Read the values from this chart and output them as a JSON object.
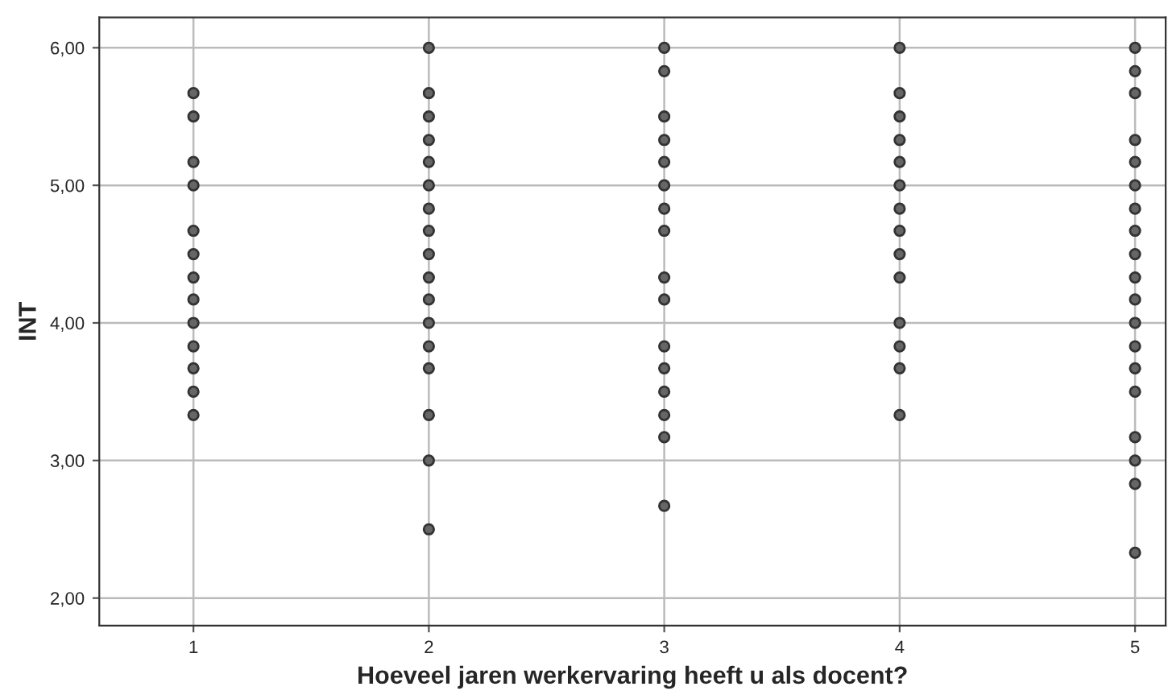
{
  "chart_data": {
    "type": "scatter",
    "xlabel": "Hoeveel jaren werkervaring heeft u als docent?",
    "ylabel": "INT",
    "xlim": [
      0.6,
      5.13
    ],
    "ylim": [
      1.8,
      6.22
    ],
    "xticks": [
      1,
      2,
      3,
      4,
      5
    ],
    "yticks": [
      {
        "value": 2,
        "label": "2,00"
      },
      {
        "value": 3,
        "label": "3,00"
      },
      {
        "value": 4,
        "label": "4,00"
      },
      {
        "value": 5,
        "label": "5,00"
      },
      {
        "value": 6,
        "label": "6,00"
      }
    ],
    "grid": true,
    "marker": "circle",
    "series": [
      {
        "color": "#666666",
        "x": [
          1,
          1,
          1,
          1,
          1,
          1,
          1,
          1,
          1,
          1,
          1,
          1,
          1,
          2,
          2,
          2,
          2,
          2,
          2,
          2,
          2,
          2,
          2,
          2,
          2,
          2,
          2,
          2,
          2,
          2,
          3,
          3,
          3,
          3,
          3,
          3,
          3,
          3,
          3,
          3,
          3,
          3,
          3,
          3,
          3,
          3,
          4,
          4,
          4,
          4,
          4,
          4,
          4,
          4,
          4,
          4,
          4,
          4,
          4,
          4,
          5,
          5,
          5,
          5,
          5,
          5,
          5,
          5,
          5,
          5,
          5,
          5,
          5,
          5,
          5,
          5,
          5,
          5,
          5
        ],
        "values": [
          5.67,
          5.5,
          5.17,
          5.0,
          4.67,
          4.5,
          4.33,
          4.17,
          4.0,
          3.83,
          3.67,
          3.5,
          3.33,
          6.0,
          5.67,
          5.5,
          5.33,
          5.17,
          5.0,
          4.83,
          4.67,
          4.5,
          4.33,
          4.17,
          4.0,
          3.83,
          3.67,
          3.33,
          3.0,
          2.5,
          6.0,
          5.83,
          5.5,
          5.33,
          5.17,
          5.0,
          4.83,
          4.67,
          4.33,
          4.17,
          3.83,
          3.67,
          3.5,
          3.33,
          3.17,
          2.67,
          6.0,
          5.67,
          5.5,
          5.33,
          5.17,
          5.0,
          4.83,
          4.67,
          4.5,
          4.33,
          4.0,
          3.83,
          3.67,
          3.33,
          6.0,
          5.83,
          5.67,
          5.33,
          5.17,
          5.0,
          4.83,
          4.67,
          4.5,
          4.33,
          4.17,
          4.0,
          3.83,
          3.67,
          3.5,
          3.17,
          3.0,
          2.83,
          2.33
        ]
      }
    ]
  }
}
